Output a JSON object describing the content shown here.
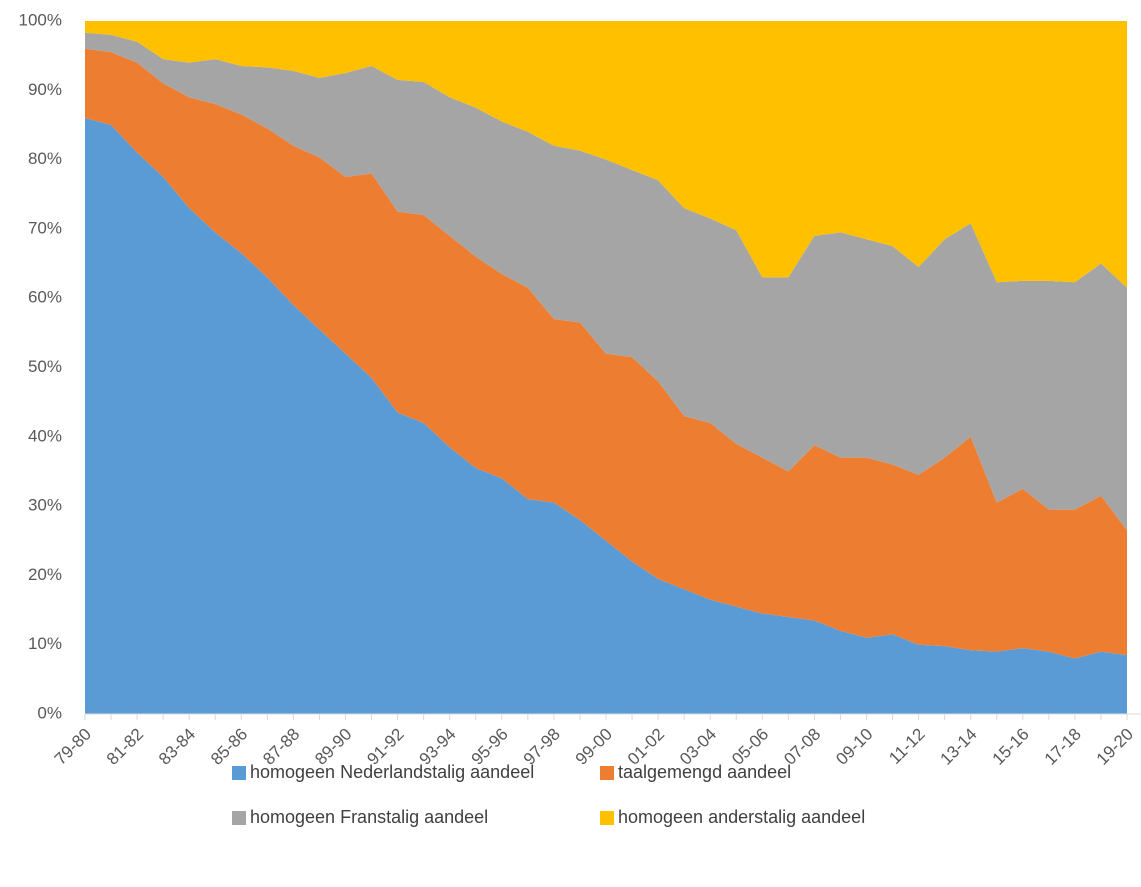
{
  "chart_data": {
    "type": "stacked-area",
    "categories": [
      "79-80",
      null,
      "81-82",
      null,
      "83-84",
      null,
      "85-86",
      null,
      "87-88",
      null,
      "89-90",
      null,
      "91-92",
      null,
      "93-94",
      null,
      "95-96",
      null,
      "97-98",
      null,
      "99-00",
      null,
      "01-02",
      null,
      "03-04",
      null,
      "05-06",
      null,
      "07-08",
      null,
      "09-10",
      null,
      "11-12",
      null,
      "13-14",
      null,
      "15-16",
      null,
      "17-18",
      null,
      "19-20"
    ],
    "series": [
      {
        "name": "homogeen Nederlandstalig aandeel",
        "color": "#5b9bd5",
        "values": [
          86,
          85,
          81,
          77.5,
          73,
          69.5,
          66.5,
          63,
          59,
          55.5,
          52,
          48.5,
          43.5,
          42,
          38.5,
          35.5,
          34,
          31,
          30.5,
          28,
          25,
          22,
          19.5,
          18,
          16.5,
          15.5,
          14.5,
          14,
          13.5,
          12,
          11,
          11.5,
          10,
          9.8,
          9.2,
          9,
          9.5,
          9,
          8,
          9,
          8.5
        ]
      },
      {
        "name": "taalgemengd aandeel",
        "color": "#ed7d31",
        "values": [
          10,
          10.5,
          13,
          13.5,
          16,
          18.5,
          20,
          21.5,
          23,
          24.8,
          25.5,
          29.5,
          29,
          30,
          30.5,
          30.5,
          29.5,
          30.5,
          26.5,
          28.5,
          27,
          29.5,
          28.5,
          25,
          25.5,
          23.5,
          22.5,
          21,
          25.3,
          25,
          26,
          24.5,
          24.5,
          27.2,
          30.8,
          21.5,
          23,
          20.5,
          21.5,
          22.5,
          18
        ]
      },
      {
        "name": "homogeen Franstalig aandeel",
        "color": "#a5a5a5",
        "values": [
          2.3,
          2.5,
          3,
          3.5,
          5,
          6.5,
          7,
          8.8,
          10.8,
          11.5,
          15,
          15.5,
          19,
          19.2,
          20,
          21.5,
          22,
          22.5,
          25,
          24.8,
          28,
          27,
          29,
          30,
          29.5,
          30.8,
          26,
          28,
          30.2,
          32.5,
          31.5,
          31.5,
          30,
          31.5,
          30.8,
          31.8,
          30,
          33,
          32.8,
          33.5,
          35
        ]
      },
      {
        "name": "homogeen anderstalig aandeel",
        "color": "#ffc000",
        "values": [
          1.7,
          2,
          3,
          5.5,
          6,
          5.5,
          6.5,
          6.7,
          7.2,
          8.2,
          7.5,
          6.5,
          8.5,
          8.8,
          11,
          12.5,
          14.5,
          16,
          18,
          18.7,
          20,
          21.5,
          23,
          27,
          28.5,
          30.2,
          37,
          37,
          31,
          30.5,
          31.5,
          32.5,
          35.5,
          31.5,
          29.2,
          37.7,
          37.5,
          37.5,
          37.7,
          35,
          38.5
        ]
      }
    ],
    "ylim": [
      0,
      100
    ],
    "yticks": [
      {
        "value": 0,
        "label": "0%"
      },
      {
        "value": 10,
        "label": "10%"
      },
      {
        "value": 20,
        "label": "20%"
      },
      {
        "value": 30,
        "label": "30%"
      },
      {
        "value": 40,
        "label": "40%"
      },
      {
        "value": 50,
        "label": "50%"
      },
      {
        "value": 60,
        "label": "60%"
      },
      {
        "value": 70,
        "label": "70%"
      },
      {
        "value": 80,
        "label": "80%"
      },
      {
        "value": 90,
        "label": "90%"
      },
      {
        "value": 100,
        "label": "100%"
      }
    ],
    "legend": "bottom"
  }
}
